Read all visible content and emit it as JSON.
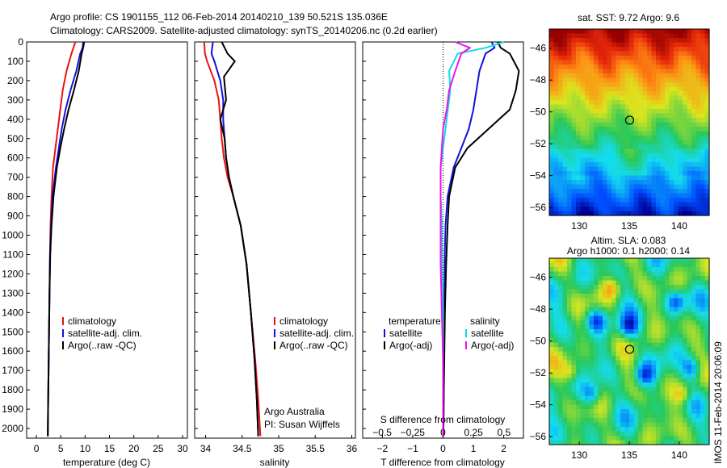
{
  "header": {
    "line1": "Argo profile: CS 1901155_112 06-Feb-2014 20140210_139 50.521S 135.036E",
    "line2": "Climatology: CARS2009. Satellite-adjusted climatology: synTS_20140206.nc (0.2d earlier)"
  },
  "colors": {
    "red": "#ee1111",
    "blue": "#1111dd",
    "black": "#000000",
    "cyan": "#11dddd",
    "magenta": "#ee11ee"
  },
  "chart_data": [
    {
      "type": "line",
      "xlabel": "temperature (deg C)",
      "ylabel": "",
      "xlim": [
        -2,
        31
      ],
      "ylim": [
        2050,
        0
      ],
      "xticks": [
        0,
        5,
        10,
        15,
        20,
        25,
        30
      ],
      "yticks": [
        0,
        100,
        200,
        300,
        400,
        500,
        600,
        700,
        800,
        900,
        1000,
        1100,
        1200,
        1300,
        1400,
        1500,
        1600,
        1700,
        1800,
        1900,
        2000
      ],
      "legend": {
        "placement": "lower-middle",
        "entries": [
          "climatology",
          "satellite-adj. clim.",
          "Argo(..raw -QC)"
        ]
      },
      "series": [
        {
          "name": "climatology",
          "color": "red",
          "x": [
            8.0,
            7.6,
            7.2,
            6.2,
            5.4,
            4.9,
            4.4,
            3.9,
            3.4,
            3.1,
            2.9,
            2.8,
            2.7,
            2.6,
            2.5,
            2.4,
            2.35
          ],
          "y": [
            0,
            30,
            60,
            150,
            250,
            350,
            450,
            550,
            650,
            800,
            950,
            1100,
            1300,
            1500,
            1700,
            1900,
            2040
          ]
        },
        {
          "name": "satellite-adj. clim.",
          "color": "blue",
          "x": [
            9.6,
            9.5,
            9.0,
            8.2,
            7.0,
            6.0,
            5.2,
            4.6,
            4.0,
            3.3,
            3.0,
            2.8,
            2.7,
            2.6,
            2.5,
            2.4,
            2.35
          ],
          "y": [
            0,
            30,
            60,
            150,
            250,
            350,
            450,
            550,
            650,
            800,
            950,
            1100,
            1300,
            1500,
            1700,
            1900,
            2040
          ]
        },
        {
          "name": "Argo(..raw -QC)",
          "color": "black",
          "x": [
            9.8,
            9.6,
            9.3,
            8.7,
            7.7,
            6.6,
            5.7,
            4.9,
            4.2,
            3.5,
            3.1,
            2.85,
            2.7,
            2.6,
            2.5,
            2.4,
            2.35
          ],
          "y": [
            0,
            30,
            60,
            150,
            250,
            350,
            450,
            550,
            650,
            800,
            950,
            1100,
            1300,
            1500,
            1700,
            1900,
            2040
          ]
        }
      ]
    },
    {
      "type": "line",
      "xlabel": "salinity",
      "xlim": [
        33.85,
        36.05
      ],
      "ylim": [
        2050,
        0
      ],
      "xticks": [
        34,
        34.5,
        35,
        35.5,
        36
      ],
      "legend": {
        "placement": "lower-middle",
        "entries": [
          "climatology",
          "satellite-adj. clim.",
          "Argo(..raw -QC)"
        ]
      },
      "annotation": [
        "Argo Australia",
        "PI: Susan Wijffels"
      ],
      "series": [
        {
          "name": "climatology",
          "color": "red",
          "x": [
            33.98,
            33.99,
            34.02,
            34.12,
            34.18,
            34.2,
            34.22,
            34.25,
            34.3,
            34.38,
            34.48,
            34.56,
            34.62,
            34.68,
            34.72,
            34.75
          ],
          "y": [
            0,
            60,
            100,
            200,
            300,
            400,
            500,
            600,
            700,
            800,
            950,
            1150,
            1400,
            1650,
            1850,
            2040
          ]
        },
        {
          "name": "satellite-adj. clim.",
          "color": "blue",
          "x": [
            34.1,
            34.08,
            34.12,
            34.2,
            34.24,
            34.24,
            34.26,
            34.28,
            34.32,
            34.38,
            34.48,
            34.56,
            34.62,
            34.67,
            34.7,
            34.72
          ],
          "y": [
            0,
            60,
            100,
            200,
            300,
            400,
            500,
            600,
            700,
            800,
            950,
            1150,
            1400,
            1650,
            1850,
            2040
          ]
        },
        {
          "name": "Argo(..raw -QC)",
          "color": "black",
          "x": [
            34.22,
            34.3,
            34.4,
            34.25,
            34.28,
            34.2,
            34.26,
            34.28,
            34.32,
            34.38,
            34.48,
            34.56,
            34.62,
            34.67,
            34.7,
            34.72
          ],
          "y": [
            0,
            60,
            100,
            180,
            300,
            400,
            500,
            600,
            700,
            800,
            950,
            1150,
            1400,
            1650,
            1850,
            2040
          ]
        }
      ]
    },
    {
      "type": "line",
      "xlabel": "T difference from climatology",
      "xlabel_top": "S difference from climatology",
      "xlim_T": [
        -2.65,
        2.65
      ],
      "xticks_T": [
        -2,
        -1,
        0,
        1,
        2
      ],
      "xticks_S": [
        -0.5,
        -0.25,
        0,
        0.25,
        0.5
      ],
      "xlim_S": [
        -0.66,
        0.66
      ],
      "ylim": [
        2050,
        0
      ],
      "legend": {
        "placement": "lower-middle",
        "temperature": [
          "temperature",
          "satellite",
          "Argo(-adj)"
        ],
        "salinity": [
          "salinity",
          "satellite",
          "Argo(-adj)"
        ]
      },
      "series": [
        {
          "name": "satellite",
          "axis": "T",
          "color": "blue",
          "x": [
            1.6,
            1.7,
            1.4,
            1.2,
            1.1,
            1.0,
            0.85,
            0.6,
            0.35,
            0.15,
            0.08,
            0.05,
            0.04,
            0.03,
            0.02,
            0.01
          ],
          "y": [
            0,
            30,
            60,
            150,
            250,
            350,
            450,
            550,
            650,
            800,
            950,
            1150,
            1400,
            1650,
            1850,
            2040
          ]
        },
        {
          "name": "Argo(-adj)",
          "axis": "T",
          "color": "black",
          "x": [
            1.8,
            1.9,
            2.2,
            2.5,
            2.4,
            2.2,
            1.5,
            0.8,
            0.4,
            0.2,
            0.15,
            0.1,
            0.06,
            0.04,
            0.02,
            0.01
          ],
          "y": [
            0,
            30,
            60,
            150,
            250,
            350,
            450,
            550,
            650,
            800,
            950,
            1150,
            1400,
            1650,
            1850,
            2040
          ]
        },
        {
          "name": "satellite",
          "axis": "S",
          "color": "cyan",
          "x": [
            0.5,
            0.35,
            0.12,
            0.05,
            0.06,
            0.04,
            0.02,
            0.0,
            -0.02,
            -0.02,
            -0.01,
            -0.01,
            0.0,
            0.0,
            0.0,
            0.0
          ],
          "y": [
            0,
            30,
            60,
            150,
            250,
            350,
            450,
            550,
            650,
            800,
            950,
            1150,
            1400,
            1650,
            1850,
            2040
          ]
        },
        {
          "name": "Argo(-adj)",
          "axis": "S",
          "color": "magenta",
          "x": [
            0.1,
            0.22,
            0.15,
            0.1,
            0.05,
            0.03,
            0.0,
            -0.01,
            -0.02,
            -0.02,
            -0.02,
            -0.02,
            -0.01,
            0.0,
            0.0,
            0.0
          ],
          "y": [
            0,
            30,
            60,
            150,
            250,
            350,
            450,
            550,
            650,
            800,
            950,
            1150,
            1400,
            1650,
            1850,
            2040
          ]
        }
      ]
    },
    {
      "type": "heatmap",
      "title": "sat. SST: 9.72 Argo: 9.6",
      "xlim": [
        127,
        143
      ],
      "ylim": [
        -56.5,
        -44.8
      ],
      "xticks": [
        130,
        135,
        140
      ],
      "yticks": [
        -46,
        -48,
        -50,
        -52,
        -54,
        -56
      ],
      "marker": {
        "lon": 135.036,
        "lat": -50.521
      }
    },
    {
      "type": "heatmap",
      "title": "Altim. SLA: 0.083",
      "subtitle": "Argo h1000: 0.1 h2000: 0.14",
      "xlim": [
        127,
        143
      ],
      "ylim": [
        -56.5,
        -44.8
      ],
      "xticks": [
        130,
        135,
        140
      ],
      "yticks": [
        -46,
        -48,
        -50,
        -52,
        -54,
        -56
      ],
      "marker": {
        "lon": 135.036,
        "lat": -50.521
      }
    }
  ],
  "footer": {
    "stamp": "IMOS 11-Feb-2014 20:06:09"
  }
}
